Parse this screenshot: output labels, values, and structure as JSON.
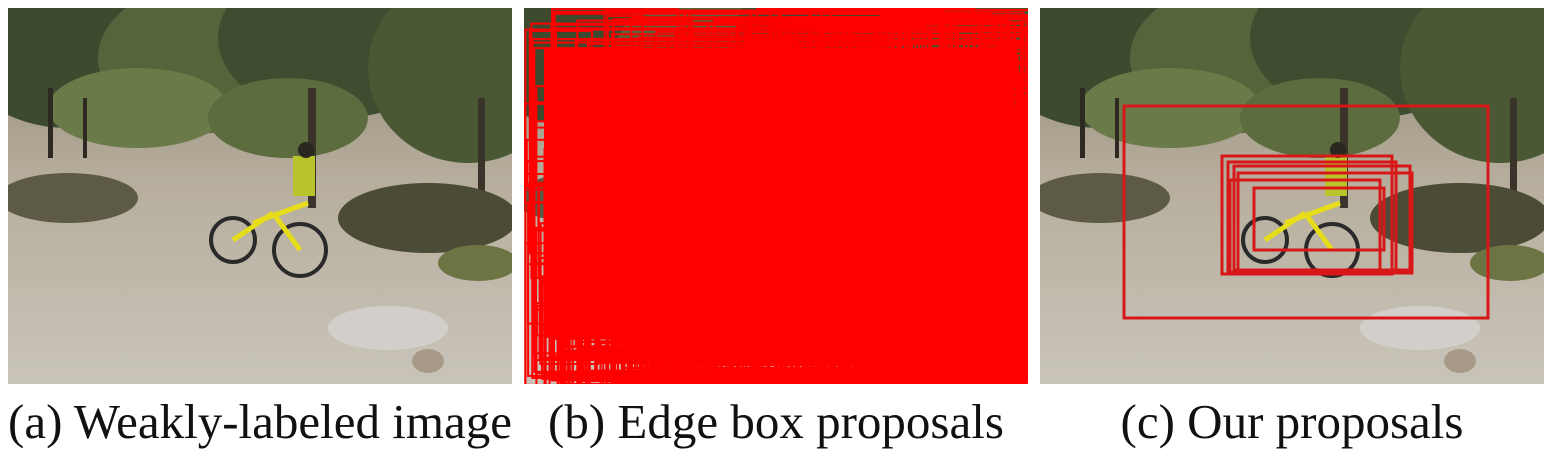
{
  "figure": {
    "panels": [
      {
        "id": "a",
        "caption": "(a) Weakly-labeled image"
      },
      {
        "id": "b",
        "caption": "(b) Edge box proposals"
      },
      {
        "id": "c",
        "caption": "(c) Our proposals"
      }
    ]
  },
  "colors": {
    "proposal_box": "#ff0000",
    "our_box": "#d81818",
    "sky": "#3f7bd6",
    "foliage_dark": "#3d4a2e",
    "foliage_mid": "#6a7a48",
    "ground": "#b9b2a6",
    "bike_yellow": "#e6dc1a"
  }
}
